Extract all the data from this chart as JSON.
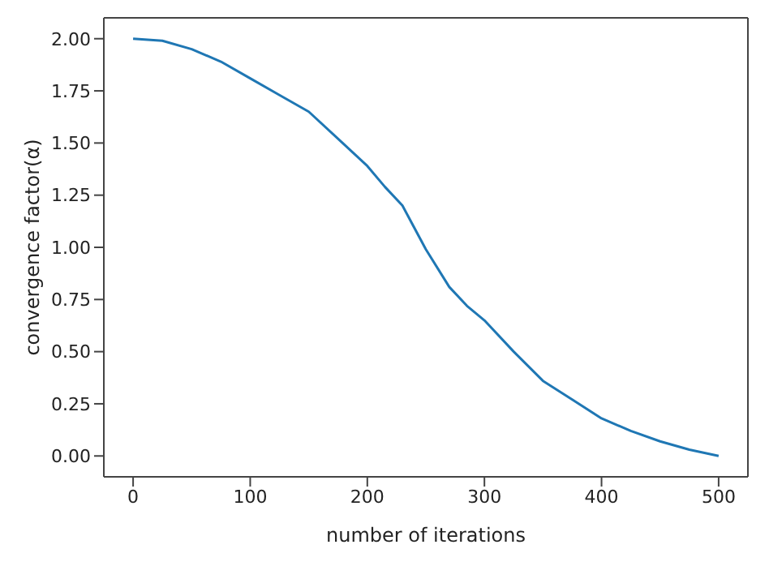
{
  "chart_data": {
    "type": "line",
    "xlabel": "number of iterations",
    "ylabel": "convergence factor(α)",
    "x": [
      0,
      25,
      50,
      75,
      100,
      125,
      150,
      175,
      200,
      215,
      230,
      250,
      270,
      285,
      300,
      325,
      350,
      375,
      400,
      425,
      450,
      475,
      500
    ],
    "series": [
      {
        "color": "#1f77b4",
        "values": [
          2.0,
          1.99,
          1.95,
          1.89,
          1.81,
          1.73,
          1.65,
          1.52,
          1.39,
          1.29,
          1.2,
          0.99,
          0.81,
          0.72,
          0.65,
          0.5,
          0.36,
          0.27,
          0.18,
          0.12,
          0.07,
          0.03,
          0.0
        ]
      }
    ],
    "xlim": [
      -25,
      525
    ],
    "xticks": [
      0,
      100,
      200,
      300,
      400,
      500
    ],
    "ylim": [
      -0.1,
      2.1
    ],
    "yticks": [
      {
        "value": 0,
        "label": "0.00"
      },
      0.25,
      {
        "value": 0.5,
        "label": "0.50"
      },
      0.75,
      {
        "value": 1,
        "label": "1.00"
      },
      1.25,
      {
        "value": 1.5,
        "label": "1.50"
      },
      1.75,
      {
        "value": 2,
        "label": "2.00"
      }
    ],
    "grid": false,
    "legend": false,
    "marker": "none",
    "line_style": "solid"
  }
}
